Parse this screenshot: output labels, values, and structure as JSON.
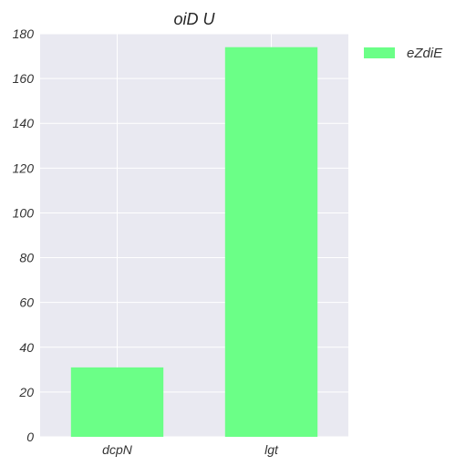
{
  "chart_data": {
    "type": "bar",
    "title": "oiD U",
    "xlabel": "",
    "ylabel": "",
    "categories": [
      "dcpN",
      "lgt"
    ],
    "series": [
      {
        "name": "eZdiE",
        "values": [
          31,
          174
        ],
        "color": "#6bff87"
      }
    ],
    "ylim": [
      0,
      180
    ],
    "yticks": [
      0,
      20,
      40,
      60,
      80,
      100,
      120,
      140,
      160,
      180
    ],
    "grid": true,
    "legend_position": "top-right",
    "background_color": "#e9e9f1",
    "grid_color": "#ffffff"
  }
}
